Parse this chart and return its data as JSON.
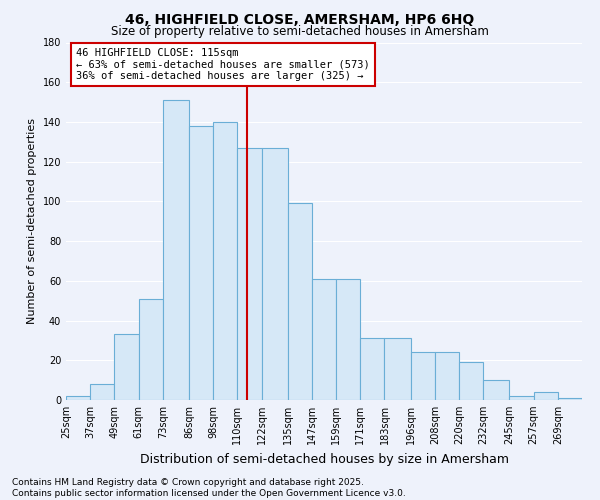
{
  "title": "46, HIGHFIELD CLOSE, AMERSHAM, HP6 6HQ",
  "subtitle": "Size of property relative to semi-detached houses in Amersham",
  "xlabel": "Distribution of semi-detached houses by size in Amersham",
  "ylabel": "Number of semi-detached properties",
  "footer_line1": "Contains HM Land Registry data © Crown copyright and database right 2025.",
  "footer_line2": "Contains public sector information licensed under the Open Government Licence v3.0.",
  "bar_values": [
    2,
    8,
    33,
    51,
    151,
    138,
    140,
    127,
    127,
    99,
    61,
    61,
    31,
    31,
    24,
    24,
    19,
    10,
    2,
    4,
    1
  ],
  "bin_edges": [
    25,
    37,
    49,
    61,
    73,
    86,
    98,
    110,
    122,
    135,
    147,
    159,
    171,
    183,
    196,
    208,
    220,
    232,
    245,
    257,
    269,
    281
  ],
  "x_tick_labels": [
    "25sqm",
    "37sqm",
    "49sqm",
    "61sqm",
    "73sqm",
    "86sqm",
    "98sqm",
    "110sqm",
    "122sqm",
    "135sqm",
    "147sqm",
    "159sqm",
    "171sqm",
    "183sqm",
    "196sqm",
    "208sqm",
    "220sqm",
    "232sqm",
    "245sqm",
    "257sqm",
    "269sqm"
  ],
  "x_tick_positions": [
    25,
    37,
    49,
    61,
    73,
    86,
    98,
    110,
    122,
    135,
    147,
    159,
    171,
    183,
    196,
    208,
    220,
    232,
    245,
    257,
    269
  ],
  "bar_color": "#d6e8f7",
  "bar_edge_color": "#6aaed6",
  "vline_x": 115,
  "vline_color": "#cc0000",
  "annotation_line1": "46 HIGHFIELD CLOSE: 115sqm",
  "annotation_line2": "← 63% of semi-detached houses are smaller (573)",
  "annotation_line3": "36% of semi-detached houses are larger (325) →",
  "annotation_box_color": "#cc0000",
  "ylim": [
    0,
    180
  ],
  "yticks": [
    0,
    20,
    40,
    60,
    80,
    100,
    120,
    140,
    160,
    180
  ],
  "bg_color": "#eef2fb",
  "grid_color": "#ffffff",
  "title_fontsize": 10,
  "subtitle_fontsize": 8.5,
  "xlabel_fontsize": 9,
  "ylabel_fontsize": 8,
  "tick_fontsize": 7,
  "footer_fontsize": 6.5,
  "annotation_fontsize": 7.5
}
